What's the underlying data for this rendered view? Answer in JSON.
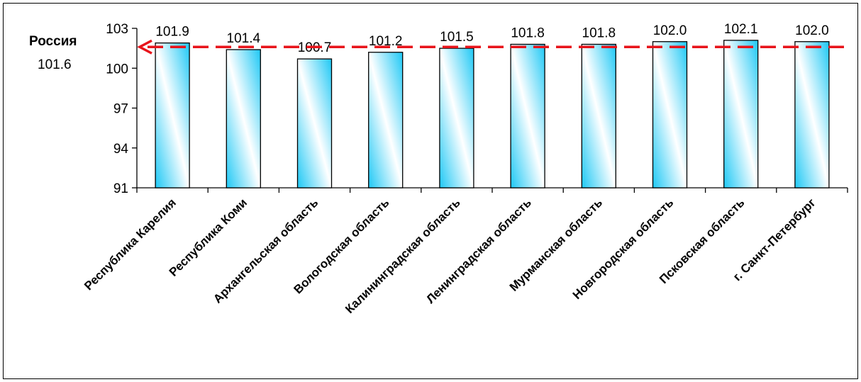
{
  "chart_data": {
    "type": "bar",
    "categories": [
      "Республика Карелия",
      "Республика Коми",
      "Архангельская область",
      "Вологодская область",
      "Калининградская область",
      "Ленинградская область",
      "Мурманская область",
      "Новгородская  область",
      "Псковская область",
      "г. Санкт-Петербург"
    ],
    "values": [
      101.9,
      101.4,
      100.7,
      101.2,
      101.5,
      101.8,
      101.8,
      102.0,
      102.1,
      102.0
    ],
    "value_labels": [
      "101.9",
      "101.4",
      "100.7",
      "101.2",
      "101.5",
      "101.8",
      "101.8",
      "102.0",
      "102.1",
      "102.0"
    ],
    "ylim": [
      91,
      103
    ],
    "yticks": [
      91,
      94,
      97,
      100,
      103
    ],
    "ytick_labels": [
      "91",
      "94",
      "97",
      "100",
      "103"
    ],
    "grid": false,
    "reference_line": {
      "label": "Россия",
      "value": 101.6,
      "value_label": "101.6",
      "color": "#e8141b"
    },
    "bar_gradient": [
      "#1ec8f5",
      "#ffffff"
    ]
  }
}
